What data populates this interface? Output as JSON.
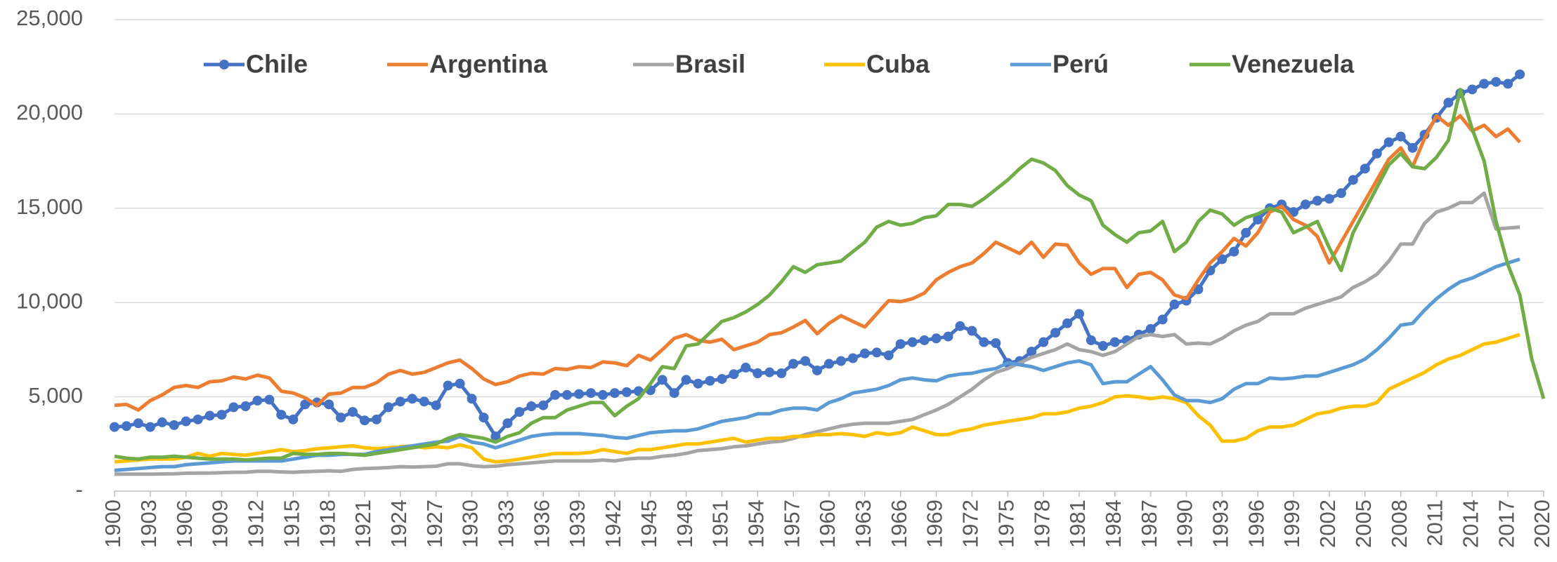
{
  "chart_data": {
    "type": "line",
    "x": [
      1900,
      1901,
      1902,
      1903,
      1904,
      1905,
      1906,
      1907,
      1908,
      1909,
      1910,
      1911,
      1912,
      1913,
      1914,
      1915,
      1916,
      1917,
      1918,
      1919,
      1920,
      1921,
      1922,
      1923,
      1924,
      1925,
      1926,
      1927,
      1928,
      1929,
      1930,
      1931,
      1932,
      1933,
      1934,
      1935,
      1936,
      1937,
      1938,
      1939,
      1940,
      1941,
      1942,
      1943,
      1944,
      1945,
      1946,
      1947,
      1948,
      1949,
      1950,
      1951,
      1952,
      1953,
      1954,
      1955,
      1956,
      1957,
      1958,
      1959,
      1960,
      1961,
      1962,
      1963,
      1964,
      1965,
      1966,
      1967,
      1968,
      1969,
      1970,
      1971,
      1972,
      1973,
      1974,
      1975,
      1976,
      1977,
      1978,
      1979,
      1980,
      1981,
      1982,
      1983,
      1984,
      1985,
      1986,
      1987,
      1988,
      1989,
      1990,
      1991,
      1992,
      1993,
      1994,
      1995,
      1996,
      1997,
      1998,
      1999,
      2000,
      2001,
      2002,
      2003,
      2004,
      2005,
      2006,
      2007,
      2008,
      2009,
      2010,
      2011,
      2012,
      2013,
      2014,
      2015,
      2016,
      2017,
      2018,
      2019,
      2020
    ],
    "series": [
      {
        "name": "Chile",
        "color": "#4472c4",
        "markers": true,
        "values": [
          3400,
          3450,
          3600,
          3400,
          3650,
          3500,
          3700,
          3800,
          4000,
          4050,
          4450,
          4500,
          4800,
          4850,
          4050,
          3800,
          4600,
          4700,
          4600,
          3900,
          4200,
          3750,
          3800,
          4450,
          4750,
          4900,
          4750,
          4550,
          5600,
          5700,
          4900,
          3900,
          2900,
          3600,
          4200,
          4500,
          4550,
          5100,
          5100,
          5150,
          5200,
          5100,
          5200,
          5250,
          5300,
          5350,
          5900,
          5200,
          5900,
          5700,
          5850,
          5950,
          6200,
          6550,
          6250,
          6300,
          6250,
          6750,
          6900,
          6400,
          6750,
          6900,
          7050,
          7300,
          7350,
          7200,
          7800,
          7900,
          8000,
          8100,
          8200,
          8750,
          8500,
          7900,
          7850,
          6800,
          6900,
          7400,
          7900,
          8400,
          8900,
          9400,
          8000,
          7700,
          7900,
          8000,
          8300,
          8600,
          9100,
          9900,
          10100,
          10700,
          11700,
          12300,
          12700,
          13700,
          14400,
          15000,
          15200,
          14800,
          15200,
          15400,
          15500,
          15800,
          16500,
          17100,
          17900,
          18500,
          18800,
          18200,
          18900,
          19800,
          20600,
          21100,
          21300,
          21600,
          21700,
          21600,
          22100,
          null,
          null
        ]
      },
      {
        "name": "Argentina",
        "color": "#ed7d31",
        "values": [
          4550,
          4600,
          4300,
          4800,
          5100,
          5500,
          5600,
          5500,
          5800,
          5850,
          6050,
          5950,
          6150,
          6000,
          5300,
          5200,
          4950,
          4550,
          5150,
          5200,
          5500,
          5500,
          5750,
          6200,
          6400,
          6200,
          6300,
          6550,
          6800,
          6950,
          6500,
          5950,
          5650,
          5800,
          6100,
          6250,
          6200,
          6500,
          6450,
          6600,
          6550,
          6850,
          6800,
          6650,
          7200,
          6950,
          7500,
          8100,
          8300,
          8000,
          7900,
          8050,
          7500,
          7700,
          7900,
          8300,
          8400,
          8700,
          9050,
          8350,
          8900,
          9300,
          9000,
          8700,
          9400,
          10100,
          10050,
          10200,
          10500,
          11200,
          11600,
          11900,
          12100,
          12600,
          13200,
          12900,
          12600,
          13200,
          12400,
          13100,
          13050,
          12100,
          11500,
          11800,
          11800,
          10800,
          11500,
          11600,
          11200,
          10400,
          10200,
          11200,
          12100,
          12700,
          13400,
          13000,
          13700,
          14800,
          15100,
          14400,
          14100,
          13500,
          12100,
          13200,
          14300,
          15400,
          16500,
          17600,
          18200,
          17200,
          18700,
          19900,
          19400,
          19900,
          19100,
          19400,
          18800,
          19200,
          18500,
          null,
          null
        ]
      },
      {
        "name": "Brasil",
        "color": "#a5a5a5",
        "values": [
          900,
          900,
          900,
          900,
          910,
          920,
          950,
          960,
          960,
          980,
          1000,
          1000,
          1050,
          1050,
          1020,
          1000,
          1030,
          1050,
          1080,
          1050,
          1150,
          1200,
          1220,
          1250,
          1300,
          1280,
          1300,
          1320,
          1450,
          1450,
          1350,
          1300,
          1320,
          1400,
          1450,
          1500,
          1550,
          1600,
          1600,
          1600,
          1600,
          1650,
          1600,
          1700,
          1750,
          1750,
          1850,
          1900,
          2000,
          2150,
          2200,
          2250,
          2350,
          2400,
          2500,
          2600,
          2650,
          2800,
          3000,
          3150,
          3300,
          3450,
          3550,
          3600,
          3600,
          3600,
          3700,
          3800,
          4050,
          4300,
          4600,
          5000,
          5400,
          5900,
          6300,
          6500,
          6800,
          7100,
          7300,
          7500,
          7800,
          7500,
          7400,
          7200,
          7400,
          7800,
          8200,
          8300,
          8200,
          8300,
          7800,
          7850,
          7800,
          8100,
          8500,
          8800,
          9000,
          9400,
          9400,
          9400,
          9700,
          9900,
          10100,
          10300,
          10800,
          11100,
          11500,
          12200,
          13100,
          13100,
          14200,
          14800,
          15000,
          15300,
          15300,
          15800,
          13900,
          13950,
          14000,
          null,
          null
        ]
      },
      {
        "name": "Cuba",
        "color": "#ffc000",
        "values": [
          1550,
          1600,
          1650,
          1700,
          1700,
          1700,
          1800,
          2000,
          1850,
          2000,
          1950,
          1900,
          2000,
          2100,
          2200,
          2100,
          2150,
          2250,
          2300,
          2350,
          2400,
          2300,
          2250,
          2300,
          2350,
          2400,
          2300,
          2350,
          2300,
          2450,
          2300,
          1700,
          1550,
          1600,
          1700,
          1800,
          1900,
          2000,
          2000,
          2000,
          2050,
          2200,
          2100,
          2000,
          2200,
          2200,
          2300,
          2400,
          2500,
          2500,
          2600,
          2700,
          2800,
          2600,
          2700,
          2800,
          2800,
          2900,
          2900,
          3000,
          3000,
          3050,
          3000,
          2900,
          3100,
          3000,
          3100,
          3400,
          3200,
          3000,
          3000,
          3200,
          3300,
          3500,
          3600,
          3700,
          3800,
          3900,
          4100,
          4100,
          4200,
          4400,
          4500,
          4700,
          5000,
          5050,
          5000,
          4900,
          5000,
          4900,
          4700,
          4000,
          3500,
          2650,
          2650,
          2800,
          3200,
          3400,
          3400,
          3500,
          3800,
          4100,
          4200,
          4400,
          4500,
          4500,
          4700,
          5400,
          5700,
          6000,
          6300,
          6700,
          7000,
          7200,
          7500,
          7800,
          7900,
          8100,
          8300,
          null,
          null
        ]
      },
      {
        "name": "Perú",
        "color": "#5b9bd5",
        "values": [
          1100,
          1150,
          1200,
          1250,
          1300,
          1300,
          1400,
          1450,
          1500,
          1550,
          1600,
          1600,
          1600,
          1600,
          1600,
          1700,
          1800,
          1900,
          1900,
          1950,
          1950,
          1950,
          2100,
          2200,
          2300,
          2400,
          2500,
          2600,
          2650,
          2900,
          2600,
          2500,
          2300,
          2500,
          2700,
          2900,
          3000,
          3050,
          3050,
          3050,
          3000,
          2950,
          2850,
          2800,
          2950,
          3100,
          3150,
          3200,
          3200,
          3300,
          3500,
          3700,
          3800,
          3900,
          4100,
          4100,
          4300,
          4400,
          4400,
          4300,
          4700,
          4900,
          5200,
          5300,
          5400,
          5600,
          5900,
          6000,
          5900,
          5850,
          6100,
          6200,
          6250,
          6400,
          6500,
          6800,
          6700,
          6600,
          6400,
          6600,
          6800,
          6900,
          6700,
          5700,
          5800,
          5800,
          6200,
          6600,
          5900,
          5100,
          4800,
          4800,
          4700,
          4900,
          5400,
          5700,
          5700,
          6000,
          5950,
          6000,
          6100,
          6100,
          6300,
          6500,
          6700,
          7000,
          7500,
          8100,
          8800,
          8900,
          9600,
          10200,
          10700,
          11100,
          11300,
          11600,
          11900,
          12100,
          12300,
          null,
          null
        ]
      },
      {
        "name": "Venezuela",
        "color": "#70ad47",
        "values": [
          1850,
          1750,
          1700,
          1800,
          1800,
          1850,
          1800,
          1750,
          1700,
          1700,
          1700,
          1650,
          1700,
          1750,
          1750,
          2000,
          1950,
          1950,
          2000,
          2000,
          1950,
          1900,
          2000,
          2100,
          2200,
          2300,
          2400,
          2500,
          2800,
          3000,
          2900,
          2800,
          2600,
          2900,
          3100,
          3600,
          3900,
          3900,
          4300,
          4500,
          4700,
          4700,
          4000,
          4500,
          4900,
          5700,
          6600,
          6500,
          7700,
          7800,
          8400,
          9000,
          9200,
          9500,
          9900,
          10400,
          11100,
          11900,
          11600,
          12000,
          12100,
          12200,
          12700,
          13200,
          14000,
          14300,
          14100,
          14200,
          14500,
          14600,
          15200,
          15200,
          15100,
          15500,
          16000,
          16500,
          17100,
          17600,
          17400,
          17000,
          16200,
          15700,
          15400,
          14100,
          13600,
          13200,
          13700,
          13800,
          14300,
          12700,
          13200,
          14300,
          14900,
          14700,
          14100,
          14500,
          14700,
          15000,
          14800,
          13700,
          14000,
          14300,
          12900,
          11700,
          13700,
          14900,
          16100,
          17300,
          17900,
          17200,
          17100,
          17700,
          18600,
          21300,
          19200,
          17500,
          14300,
          12000,
          10400,
          7000,
          4900
        ]
      }
    ],
    "xlim": [
      1900,
      2020
    ],
    "xticks": [
      1900,
      1903,
      1906,
      1909,
      1912,
      1915,
      1918,
      1921,
      1924,
      1927,
      1930,
      1933,
      1936,
      1939,
      1942,
      1945,
      1948,
      1951,
      1954,
      1957,
      1960,
      1963,
      1966,
      1969,
      1972,
      1975,
      1978,
      1981,
      1984,
      1987,
      1990,
      1993,
      1996,
      1999,
      2002,
      2005,
      2008,
      2011,
      2014,
      2017,
      2020
    ],
    "ylim": [
      0,
      25000
    ],
    "yticks": [
      {
        "value": 0,
        "label": "-"
      },
      {
        "value": 5000,
        "label": "5,000"
      },
      {
        "value": 10000,
        "label": "10,000"
      },
      {
        "value": 15000,
        "label": "15,000"
      },
      {
        "value": 20000,
        "label": "20,000"
      },
      {
        "value": 25000,
        "label": "25,000"
      }
    ],
    "grid": true,
    "legend": "top"
  }
}
